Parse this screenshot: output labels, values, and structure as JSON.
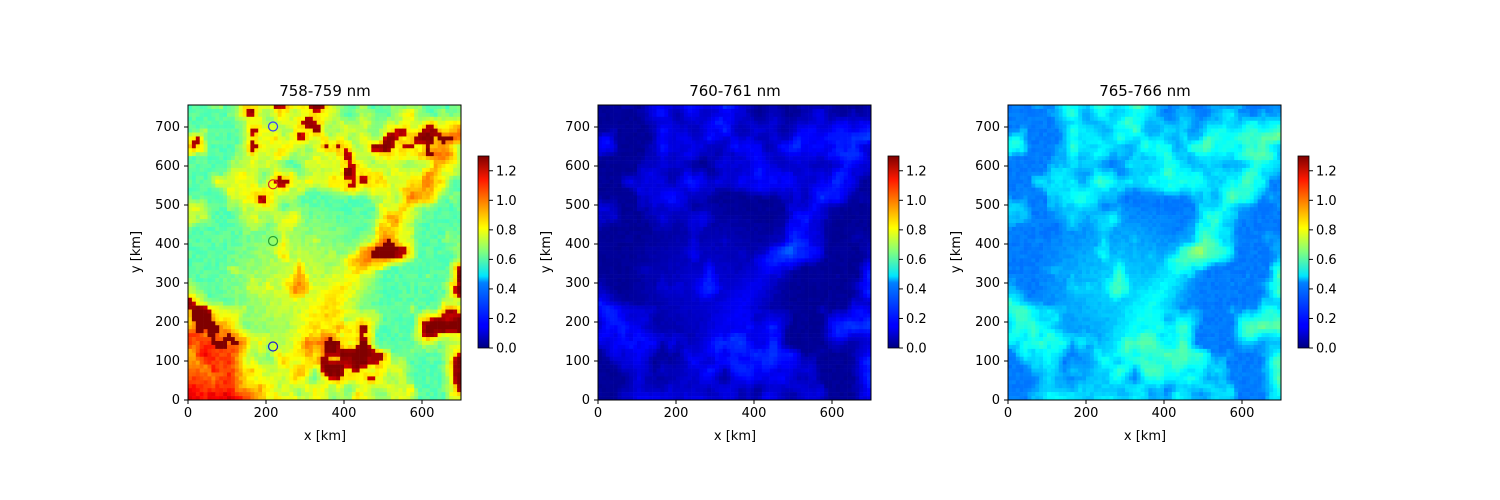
{
  "figure": {
    "colormap": "jet",
    "panel_count": 3
  },
  "chart_data": [
    {
      "type": "heatmap",
      "title": "758-759 nm",
      "xlabel": "x [km]",
      "ylabel": "y [km]",
      "xlim": [
        0,
        700
      ],
      "ylim": [
        0,
        755
      ],
      "xticks": [
        0,
        200,
        400,
        600
      ],
      "yticks": [
        0,
        100,
        200,
        300,
        400,
        500,
        600,
        700
      ],
      "colorbar": {
        "vmin": 0,
        "vmax": 1.3,
        "ticks": [
          "0.0",
          "0.2",
          "0.4",
          "0.6",
          "0.8",
          "1.0",
          "1.2"
        ]
      },
      "field_summary": {
        "background": 0.62,
        "typical_range": [
          0.55,
          1.3
        ],
        "bright_cluster_region": "lower-left"
      },
      "markers": [
        {
          "x": 218,
          "y": 700,
          "color": "#3a3aff"
        },
        {
          "x": 218,
          "y": 552,
          "color": "#d62728"
        },
        {
          "x": 218,
          "y": 407,
          "color": "#2ca02c"
        },
        {
          "x": 218,
          "y": 137,
          "color": "#1f1fd0"
        }
      ]
    },
    {
      "type": "heatmap",
      "title": "760-761 nm",
      "xlabel": "x [km]",
      "ylabel": "y [km]",
      "xlim": [
        0,
        700
      ],
      "ylim": [
        0,
        755
      ],
      "xticks": [
        0,
        200,
        400,
        600
      ],
      "yticks": [
        0,
        100,
        200,
        300,
        400,
        500,
        600,
        700
      ],
      "colorbar": {
        "vmin": 0,
        "vmax": 1.3,
        "ticks": [
          "0.0",
          "0.2",
          "0.4",
          "0.6",
          "0.8",
          "1.0",
          "1.2"
        ]
      },
      "field_summary": {
        "background": 0.05,
        "typical_range": [
          0.0,
          0.5
        ]
      }
    },
    {
      "type": "heatmap",
      "title": "765-766 nm",
      "xlabel": "x [km]",
      "ylabel": "y [km]",
      "xlim": [
        0,
        700
      ],
      "ylim": [
        0,
        755
      ],
      "xticks": [
        0,
        200,
        400,
        600
      ],
      "yticks": [
        0,
        100,
        200,
        300,
        400,
        500,
        600,
        700
      ],
      "colorbar": {
        "vmin": 0,
        "vmax": 1.3,
        "ticks": [
          "0.0",
          "0.2",
          "0.4",
          "0.6",
          "0.8",
          "1.0",
          "1.2"
        ]
      },
      "field_summary": {
        "background": 0.32,
        "typical_range": [
          0.25,
          0.9
        ]
      }
    }
  ]
}
